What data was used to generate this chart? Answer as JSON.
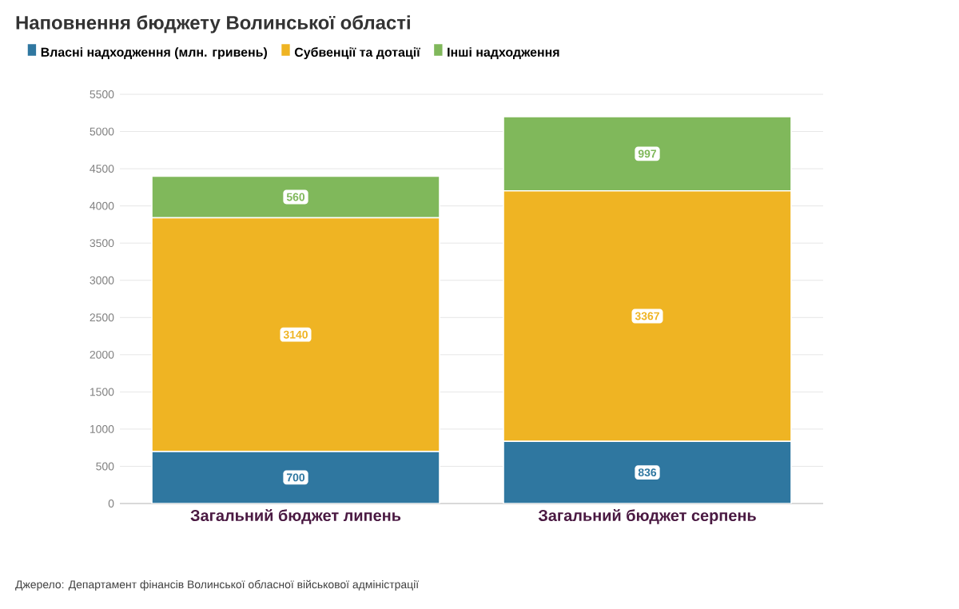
{
  "chart_data": {
    "type": "bar",
    "stacked": true,
    "title": "Наповнення бюджету Волинської області",
    "categories": [
      "Загальний бюджет липень",
      "Загальний бюджет серпень"
    ],
    "series": [
      {
        "name": "Власні надходження (млн. гривень)",
        "color": "#2f77a0",
        "values": [
          700,
          836
        ]
      },
      {
        "name": "Субвенції та дотації",
        "color": "#efb423",
        "values": [
          3140,
          3367
        ]
      },
      {
        "name": "Інші надходження",
        "color": "#80b85b",
        "values": [
          560,
          997
        ]
      }
    ],
    "ylim": [
      0,
      5500
    ],
    "yticks": [
      0,
      500,
      1000,
      1500,
      2000,
      2500,
      3000,
      3500,
      4000,
      4500,
      5000,
      5500
    ],
    "grid": "y",
    "legend": "top left",
    "data_labels": true,
    "annotations": [
      "Джерело: Департамент фінансів Волинської обласної військової адміністрації"
    ]
  }
}
